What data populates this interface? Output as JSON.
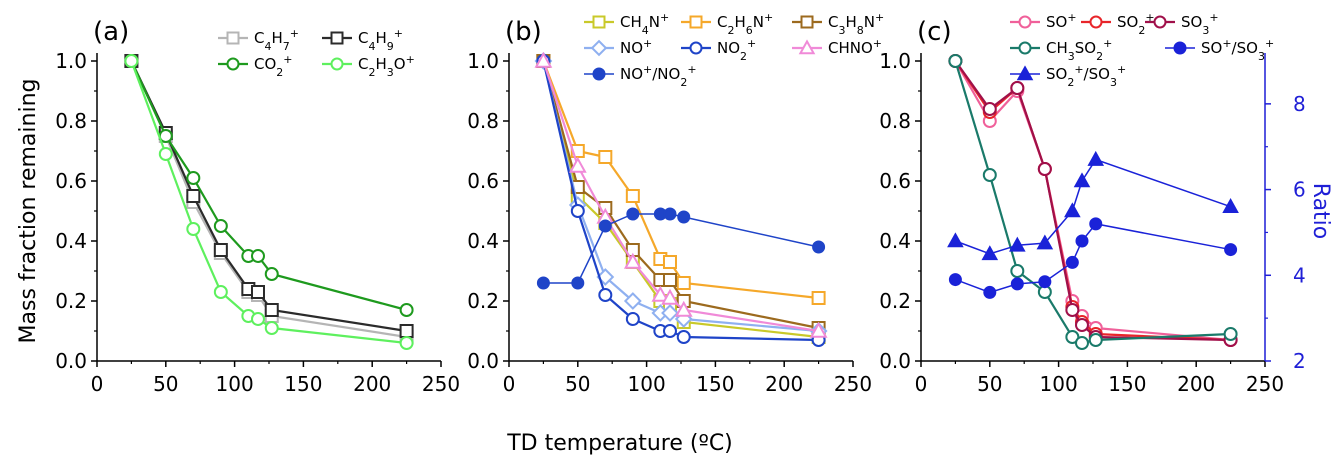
{
  "xlabel": "TD temperature (ºC)",
  "ylabel": "Mass fraction remaining",
  "y2label": "Ratio",
  "chart_data": [
    {
      "type": "line",
      "panel_label": "(a)",
      "xlim": [
        0,
        250
      ],
      "ylim": [
        0,
        1.0
      ],
      "xticks": [
        "0",
        "50",
        "100",
        "150",
        "200",
        "250"
      ],
      "yticks": [
        "0.0",
        "0.2",
        "0.4",
        "0.6",
        "0.8",
        "1.0"
      ],
      "legend_position": "top-right",
      "series": [
        {
          "name": "C4H7+",
          "label_base": "C",
          "label_parts": [
            [
              "4",
              "sub"
            ],
            [
              "H",
              ""
            ],
            [
              "7",
              "sub"
            ],
            [
              "+",
              "sup"
            ]
          ],
          "color": "#b5b5b5",
          "marker": "square",
          "x": [
            25,
            50,
            70,
            90,
            110,
            117,
            127,
            225
          ],
          "y": [
            1.0,
            0.75,
            0.53,
            0.36,
            0.23,
            0.22,
            0.15,
            0.08
          ]
        },
        {
          "name": "C4H9+",
          "label_base": "C",
          "label_parts": [
            [
              "4",
              "sub"
            ],
            [
              "H",
              ""
            ],
            [
              "9",
              "sub"
            ],
            [
              "+",
              "sup"
            ]
          ],
          "color": "#2b2b2b",
          "marker": "square",
          "x": [
            25,
            50,
            70,
            90,
            110,
            117,
            127,
            225
          ],
          "y": [
            1.0,
            0.76,
            0.55,
            0.37,
            0.24,
            0.23,
            0.17,
            0.1
          ]
        },
        {
          "name": "CO2+",
          "label_base": "CO",
          "label_parts": [
            [
              "2",
              "sub"
            ],
            [
              "+",
              "sup"
            ]
          ],
          "color": "#1e9a1e",
          "marker": "circle",
          "x": [
            25,
            50,
            70,
            90,
            110,
            117,
            127,
            225
          ],
          "y": [
            1.0,
            0.75,
            0.61,
            0.45,
            0.35,
            0.35,
            0.29,
            0.17
          ]
        },
        {
          "name": "C2H3O+",
          "label_base": "C",
          "label_parts": [
            [
              "2",
              "sub"
            ],
            [
              "H",
              ""
            ],
            [
              "3",
              "sub"
            ],
            [
              "O",
              ""
            ],
            [
              "+",
              "sup"
            ]
          ],
          "color": "#5ef05e",
          "marker": "circle",
          "x": [
            25,
            50,
            70,
            90,
            110,
            117,
            127,
            225
          ],
          "y": [
            1.0,
            0.69,
            0.44,
            0.23,
            0.15,
            0.14,
            0.11,
            0.06
          ]
        }
      ]
    },
    {
      "type": "line",
      "panel_label": "(b)",
      "xlim": [
        0,
        250
      ],
      "ylim": [
        0,
        1.0
      ],
      "xticks": [
        "0",
        "50",
        "100",
        "150",
        "200",
        "250"
      ],
      "yticks": [
        "0.0",
        "0.2",
        "0.4",
        "0.6",
        "0.8",
        "1.0"
      ],
      "legend_position": "top-right",
      "series": [
        {
          "name": "CH4N+",
          "label_base": "CH",
          "label_parts": [
            [
              "4",
              "sub"
            ],
            [
              "N",
              ""
            ],
            [
              "+",
              "sup"
            ]
          ],
          "color": "#c9c92a",
          "marker": "square",
          "x": [
            25,
            50,
            70,
            90,
            110,
            117,
            127,
            225
          ],
          "y": [
            1.0,
            0.55,
            0.46,
            0.33,
            0.2,
            0.19,
            0.13,
            0.08
          ]
        },
        {
          "name": "C2H6N+",
          "label_base": "C",
          "label_parts": [
            [
              "2",
              "sub"
            ],
            [
              "H",
              ""
            ],
            [
              "6",
              "sub"
            ],
            [
              "N",
              ""
            ],
            [
              "+",
              "sup"
            ]
          ],
          "color": "#f5a82a",
          "marker": "square",
          "x": [
            25,
            50,
            70,
            90,
            110,
            117,
            127,
            225
          ],
          "y": [
            1.0,
            0.7,
            0.68,
            0.55,
            0.34,
            0.33,
            0.26,
            0.21
          ]
        },
        {
          "name": "C3H8N+",
          "label_base": "C",
          "label_parts": [
            [
              "3",
              "sub"
            ],
            [
              "H",
              ""
            ],
            [
              "8",
              "sub"
            ],
            [
              "N",
              ""
            ],
            [
              "+",
              "sup"
            ]
          ],
          "color": "#9c6a1e",
          "marker": "square",
          "x": [
            25,
            50,
            70,
            90,
            110,
            117,
            127,
            225
          ],
          "y": [
            1.0,
            0.58,
            0.51,
            0.37,
            0.27,
            0.27,
            0.2,
            0.11
          ]
        },
        {
          "name": "NO+",
          "label_base": "NO",
          "label_parts": [
            [
              "+",
              "sup"
            ]
          ],
          "color": "#8fb0f0",
          "marker": "diamond",
          "x": [
            25,
            50,
            70,
            90,
            110,
            117,
            127,
            225
          ],
          "y": [
            1.0,
            0.52,
            0.28,
            0.2,
            0.16,
            0.16,
            0.14,
            0.1
          ]
        },
        {
          "name": "NO2+",
          "label_base": "NO",
          "label_parts": [
            [
              "2",
              "sub"
            ],
            [
              "+",
              "sup"
            ]
          ],
          "color": "#1f44c8",
          "marker": "circle",
          "x": [
            25,
            50,
            70,
            90,
            110,
            117,
            127,
            225
          ],
          "y": [
            1.0,
            0.5,
            0.22,
            0.14,
            0.1,
            0.1,
            0.08,
            0.07
          ]
        },
        {
          "name": "CHNO+",
          "label_base": "CHNO",
          "label_parts": [
            [
              "+",
              "sup"
            ]
          ],
          "color": "#f08ad8",
          "marker": "triangle",
          "x": [
            25,
            50,
            70,
            90,
            110,
            117,
            127,
            225
          ],
          "y": [
            1.0,
            0.65,
            0.48,
            0.33,
            0.22,
            0.21,
            0.17,
            0.1
          ]
        },
        {
          "name": "NO+/NO2+",
          "label_base": "NO",
          "label_parts": [
            [
              "+",
              "sup"
            ],
            [
              "/NO",
              ""
            ],
            [
              "2",
              "sub"
            ],
            [
              "+",
              "sup"
            ]
          ],
          "color": "#1f44c8",
          "marker": "filled-circle",
          "x": [
            25,
            50,
            70,
            90,
            110,
            117,
            127,
            225
          ],
          "y": [
            0.26,
            0.26,
            0.45,
            0.49,
            0.49,
            0.49,
            0.48,
            0.38
          ]
        }
      ]
    },
    {
      "type": "line",
      "panel_label": "(c)",
      "xlim": [
        0,
        250
      ],
      "ylim": [
        0,
        1.0
      ],
      "y2lim": [
        2,
        9
      ],
      "xticks": [
        "0",
        "50",
        "100",
        "150",
        "200",
        "250"
      ],
      "yticks": [
        "0.0",
        "0.2",
        "0.4",
        "0.6",
        "0.8",
        "1.0"
      ],
      "y2ticks": [
        "2",
        "4",
        "6",
        "8"
      ],
      "legend_position": "top-right",
      "series": [
        {
          "name": "SO+",
          "label_base": "SO",
          "label_parts": [
            [
              "+",
              "sup"
            ]
          ],
          "color": "#f0609a",
          "marker": "circle",
          "axis": "left",
          "x": [
            25,
            50,
            70,
            90,
            110,
            117,
            127,
            225
          ],
          "y": [
            1.0,
            0.8,
            0.9,
            0.64,
            0.2,
            0.15,
            0.11,
            0.07
          ]
        },
        {
          "name": "SO2+",
          "label_base": "SO",
          "label_parts": [
            [
              "2",
              "sub"
            ],
            [
              "+",
              "sup"
            ]
          ],
          "color": "#e8252a",
          "marker": "circle",
          "axis": "left",
          "x": [
            25,
            50,
            70,
            90,
            110,
            117,
            127,
            225
          ],
          "y": [
            1.0,
            0.83,
            0.91,
            0.64,
            0.18,
            0.13,
            0.09,
            0.07
          ]
        },
        {
          "name": "SO3+",
          "label_base": "SO",
          "label_parts": [
            [
              "3",
              "sub"
            ],
            [
              "+",
              "sup"
            ]
          ],
          "color": "#a0104a",
          "marker": "circle",
          "axis": "left",
          "x": [
            25,
            50,
            70,
            90,
            110,
            117,
            127,
            225
          ],
          "y": [
            1.0,
            0.84,
            0.91,
            0.64,
            0.17,
            0.12,
            0.08,
            0.07
          ]
        },
        {
          "name": "CH3SO2+",
          "label_base": "CH",
          "label_parts": [
            [
              "3",
              "sub"
            ],
            [
              "SO",
              ""
            ],
            [
              "2",
              "sub"
            ],
            [
              "+",
              "sup"
            ]
          ],
          "color": "#1a7a6a",
          "marker": "circle",
          "axis": "left",
          "x": [
            25,
            50,
            70,
            90,
            110,
            117,
            127,
            225
          ],
          "y": [
            1.0,
            0.62,
            0.3,
            0.23,
            0.08,
            0.06,
            0.07,
            0.09
          ]
        },
        {
          "name": "SO+/SO3+",
          "label_base": "SO",
          "label_parts": [
            [
              "+",
              "sup"
            ],
            [
              "/SO",
              ""
            ],
            [
              "3",
              "sub"
            ],
            [
              "+",
              "sup"
            ]
          ],
          "color": "#1a22d8",
          "marker": "filled-circle",
          "axis": "right",
          "x": [
            25,
            50,
            70,
            90,
            110,
            117,
            127,
            225
          ],
          "y": [
            3.9,
            3.6,
            3.8,
            3.85,
            4.3,
            4.8,
            5.2,
            4.6
          ]
        },
        {
          "name": "SO2+/SO3+",
          "label_base": "SO",
          "label_parts": [
            [
              "2",
              "sub"
            ],
            [
              "+",
              "sup"
            ],
            [
              "/SO",
              ""
            ],
            [
              "3",
              "sub"
            ],
            [
              "+",
              "sup"
            ]
          ],
          "color": "#1a22d8",
          "marker": "filled-triangle",
          "axis": "right",
          "x": [
            25,
            50,
            70,
            90,
            110,
            117,
            127,
            225
          ],
          "y": [
            4.8,
            4.5,
            4.7,
            4.75,
            5.5,
            6.2,
            6.7,
            5.6
          ]
        }
      ]
    }
  ]
}
